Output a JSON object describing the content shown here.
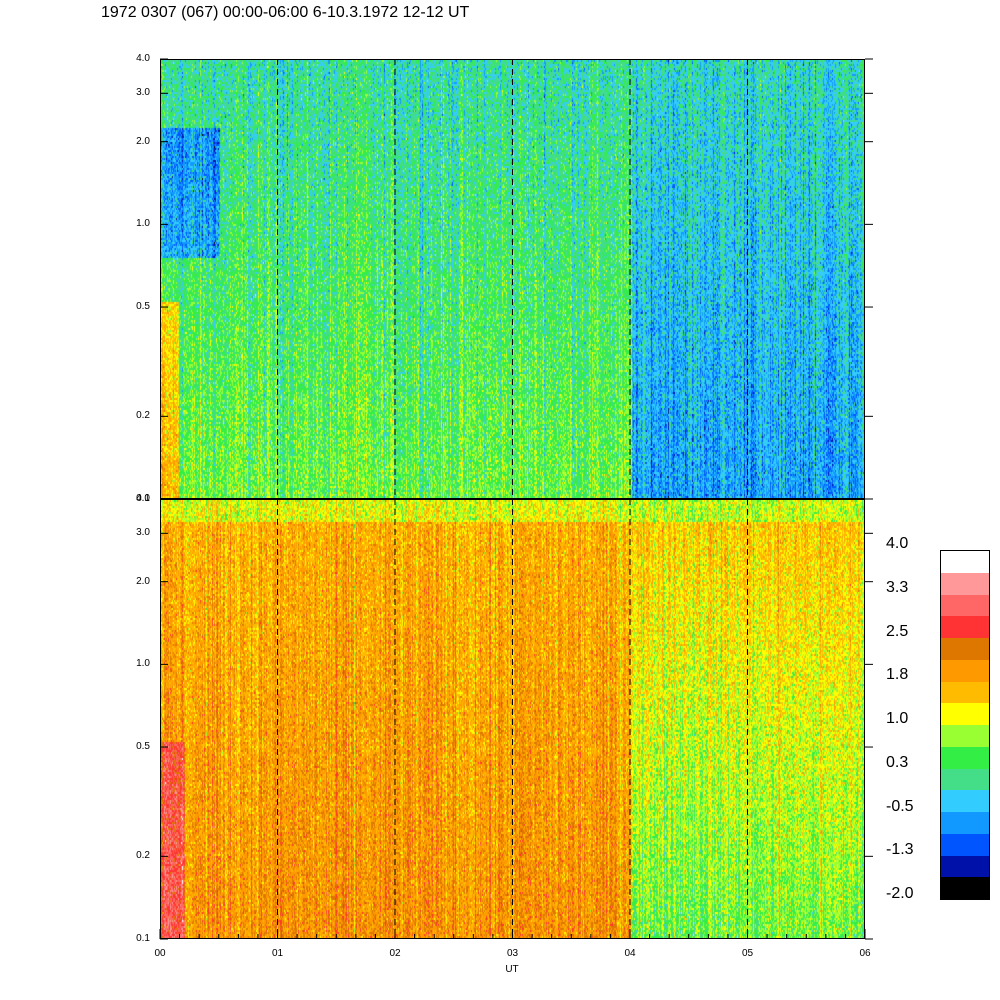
{
  "title": "1972 0307 (067) 00:00-06:00 6-10.3.1972  12-12 UT",
  "chart_data": {
    "type": "heatmap",
    "title": "1972 0307 (067) 00:00-06:00 6-10.3.1972  12-12 UT",
    "xlabel": "UT",
    "x_ticks": [
      "00",
      "01",
      "02",
      "03",
      "04",
      "05",
      "06"
    ],
    "xlim": [
      0,
      6
    ],
    "y_scale": "log",
    "ylim": [
      0.1,
      4.0
    ],
    "y_ticks": [
      "0.1",
      "0.2",
      "0.5",
      "1.0",
      "2.0",
      "3.0",
      "4.0"
    ],
    "y_tick_values": [
      0.1,
      0.2,
      0.5,
      1.0,
      2.0,
      3.0,
      4.0
    ],
    "grid": "dashed vertical lines at each hour",
    "panels": [
      {
        "name": "upper",
        "dominant_range": [
          -1.3,
          1.5
        ],
        "description_values": {
          "00-04_low_freq": 0.6,
          "00-04_high_freq": 0.0,
          "04-06_low_freq": -0.6,
          "04-06_high_freq": -0.1
        }
      },
      {
        "name": "lower",
        "dominant_range": [
          0.5,
          2.8
        ],
        "description_values": {
          "00-04_low_freq": 2.0,
          "00-04_high_freq": 1.7,
          "04-06_low_freq": 0.6,
          "04-06_high_freq": 1.6
        }
      }
    ],
    "colorbar": {
      "labels": [
        "4.0",
        "3.3",
        "2.5",
        "1.8",
        "1.0",
        "0.3",
        "-0.5",
        "-1.3",
        "-2.0"
      ],
      "min": -2.0,
      "max": 4.0,
      "colors": [
        "#ffffff",
        "#ff9999",
        "#ff6666",
        "#ff3333",
        "#dd7700",
        "#ff9900",
        "#ffbb00",
        "#ffff00",
        "#99ff33",
        "#33ee44",
        "#44dd88",
        "#33ccff",
        "#1199ff",
        "#0055ff",
        "#0011aa",
        "#000000"
      ]
    }
  }
}
